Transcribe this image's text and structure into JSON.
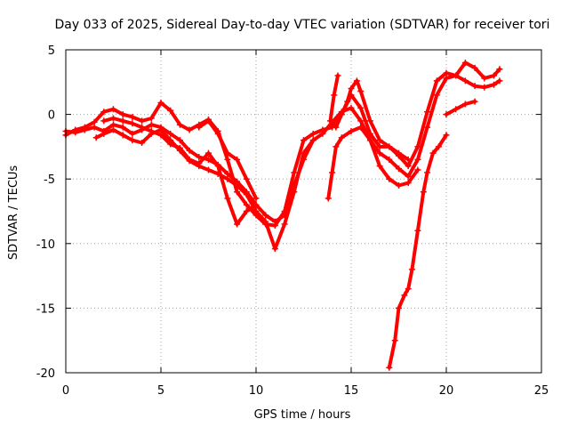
{
  "chart_data": {
    "type": "scatter",
    "title": "Day 033 of 2025, Sidereal Day-to-day VTEC variation (SDTVAR) for receiver tori",
    "xlabel": "GPS time / hours",
    "ylabel": "SDTVAR / TECUs",
    "xlim": [
      0,
      25
    ],
    "ylim": [
      -20,
      5
    ],
    "xticks": [
      "0",
      "5",
      "10",
      "15",
      "20",
      "25"
    ],
    "yticks": [
      "5",
      "0",
      "-5",
      "-10",
      "-15",
      "-20"
    ],
    "grid": true,
    "marker": "+",
    "color": "#ff0000",
    "series": [
      {
        "points": [
          [
            0,
            -1.6
          ],
          [
            0.5,
            -1.2
          ],
          [
            1,
            -1.0
          ],
          [
            1.5,
            -0.6
          ],
          [
            2,
            0.2
          ],
          [
            2.5,
            0.4
          ],
          [
            3,
            0.0
          ],
          [
            3.5,
            -0.2
          ],
          [
            4,
            -0.5
          ],
          [
            4.5,
            -0.3
          ],
          [
            5,
            0.9
          ],
          [
            5.5,
            0.3
          ],
          [
            6,
            -0.8
          ],
          [
            6.5,
            -1.2
          ],
          [
            7,
            -0.8
          ],
          [
            7.5,
            -0.4
          ],
          [
            8,
            -1.3
          ],
          [
            8.5,
            -3.5
          ],
          [
            9,
            -6.0
          ],
          [
            9.5,
            -7.0
          ],
          [
            10,
            -7.8
          ],
          [
            10.5,
            -8.5
          ],
          [
            11,
            -8.6
          ],
          [
            11.5,
            -7.5
          ],
          [
            12,
            -4.5
          ],
          [
            12.5,
            -2.0
          ],
          [
            13,
            -1.5
          ],
          [
            13.5,
            -1.2
          ],
          [
            14,
            -1.0
          ],
          [
            14.5,
            0.0
          ],
          [
            15,
            1.5
          ],
          [
            15.5,
            0.5
          ],
          [
            16,
            -1.5
          ],
          [
            16.5,
            -2.5
          ],
          [
            17,
            -2.5
          ],
          [
            17.5,
            -3.2
          ],
          [
            18,
            -4.0
          ],
          [
            18.5,
            -2.5
          ],
          [
            19,
            0.2
          ],
          [
            19.5,
            2.6
          ],
          [
            20,
            3.2
          ],
          [
            20.5,
            3.0
          ],
          [
            21,
            2.6
          ],
          [
            21.5,
            2.2
          ],
          [
            22,
            2.1
          ],
          [
            22.5,
            2.3
          ],
          [
            22.8,
            2.6
          ]
        ]
      },
      {
        "points": [
          [
            0,
            -1.3
          ],
          [
            0.5,
            -1.4
          ],
          [
            1,
            -1.2
          ],
          [
            1.5,
            -1.0
          ],
          [
            2,
            -1.3
          ],
          [
            2.5,
            -0.8
          ],
          [
            3,
            -1.0
          ],
          [
            3.5,
            -1.5
          ],
          [
            4,
            -1.2
          ],
          [
            4.5,
            -0.8
          ],
          [
            5,
            -1.0
          ],
          [
            5.5,
            -1.5
          ],
          [
            6,
            -2.0
          ],
          [
            6.5,
            -2.8
          ],
          [
            7,
            -3.3
          ],
          [
            7.5,
            -3.5
          ],
          [
            8,
            -3.9
          ],
          [
            8.5,
            -4.6
          ],
          [
            9,
            -5.2
          ],
          [
            9.5,
            -6.0
          ],
          [
            10,
            -7.0
          ],
          [
            10.5,
            -7.8
          ],
          [
            11,
            -8.3
          ],
          [
            11.5,
            -7.8
          ],
          [
            12,
            -5.5
          ],
          [
            12.5,
            -3.5
          ],
          [
            13,
            -2.0
          ],
          [
            13.5,
            -1.5
          ],
          [
            14,
            -0.6
          ],
          [
            14.5,
            0.2
          ],
          [
            15,
            0.5
          ],
          [
            15.5,
            -0.5
          ],
          [
            16,
            -2.0
          ],
          [
            16.5,
            -3.0
          ],
          [
            17,
            -3.5
          ],
          [
            17.5,
            -4.2
          ],
          [
            18,
            -4.8
          ],
          [
            18.5,
            -3.5
          ],
          [
            19,
            -1.0
          ],
          [
            19.5,
            1.5
          ],
          [
            20,
            2.8
          ],
          [
            20.5,
            3.0
          ],
          [
            21,
            4.0
          ],
          [
            21.5,
            3.6
          ],
          [
            22,
            2.8
          ],
          [
            22.5,
            3.0
          ],
          [
            22.8,
            3.5
          ]
        ]
      },
      {
        "points": [
          [
            1.6,
            -1.8
          ],
          [
            2,
            -1.5
          ],
          [
            2.5,
            -1.2
          ],
          [
            3,
            -1.6
          ],
          [
            3.5,
            -2.0
          ],
          [
            4,
            -2.2
          ],
          [
            4.5,
            -1.5
          ],
          [
            5,
            -1.2
          ],
          [
            5.5,
            -2.0
          ],
          [
            6,
            -2.8
          ],
          [
            6.5,
            -3.6
          ],
          [
            7,
            -4.0
          ],
          [
            7.5,
            -4.3
          ],
          [
            8,
            -4.6
          ],
          [
            8.5,
            -5.0
          ],
          [
            9,
            -5.5
          ],
          [
            9.5,
            -6.2
          ],
          [
            10,
            -7.5
          ],
          [
            10.5,
            -8.3
          ],
          [
            11,
            -10.4
          ],
          [
            11.5,
            -8.5
          ],
          [
            12,
            -6.0
          ],
          [
            12.5,
            -3.0
          ],
          [
            13,
            -2.0
          ]
        ]
      },
      {
        "points": [
          [
            2,
            -0.5
          ],
          [
            2.5,
            -0.3
          ],
          [
            3,
            -0.5
          ],
          [
            3.5,
            -0.7
          ],
          [
            4,
            -1.0
          ],
          [
            4.5,
            -1.3
          ],
          [
            5,
            -1.6
          ],
          [
            5.5,
            -2.3
          ],
          [
            6,
            -2.6
          ],
          [
            6.5,
            -3.5
          ],
          [
            7,
            -3.8
          ],
          [
            7.5,
            -3.0
          ],
          [
            8,
            -4.0
          ],
          [
            8.5,
            -6.5
          ],
          [
            9,
            -8.5
          ],
          [
            9.5,
            -7.5
          ],
          [
            10,
            -7.0
          ]
        ]
      },
      {
        "points": [
          [
            7,
            -1.0
          ],
          [
            7.5,
            -0.5
          ],
          [
            8,
            -1.5
          ],
          [
            8.5,
            -3.0
          ],
          [
            9,
            -3.5
          ],
          [
            9.5,
            -5.0
          ],
          [
            10,
            -6.5
          ]
        ]
      },
      {
        "points": [
          [
            13.8,
            -6.5
          ],
          [
            14,
            -4.5
          ],
          [
            14.2,
            -2.5
          ],
          [
            14.5,
            -1.8
          ],
          [
            15,
            -1.3
          ],
          [
            15.5,
            -1.0
          ],
          [
            16,
            -2.0
          ],
          [
            16.5,
            -4.0
          ],
          [
            17,
            -5.0
          ],
          [
            17.5,
            -5.5
          ],
          [
            18,
            -5.3
          ],
          [
            18.5,
            -4.3
          ]
        ]
      },
      {
        "points": [
          [
            14.2,
            -1.0
          ],
          [
            14.5,
            0.0
          ],
          [
            14.8,
            1.0
          ],
          [
            15,
            2.0
          ],
          [
            15.3,
            2.6
          ],
          [
            15.5,
            1.8
          ],
          [
            16,
            -0.5
          ],
          [
            16.5,
            -2.0
          ],
          [
            17,
            -2.5
          ],
          [
            17.5,
            -3.0
          ],
          [
            18,
            -3.5
          ]
        ]
      },
      {
        "points": [
          [
            13.9,
            -0.5
          ],
          [
            14.1,
            1.5
          ],
          [
            14.3,
            3.0
          ]
        ]
      },
      {
        "points": [
          [
            17,
            -19.6
          ],
          [
            17.3,
            -17.5
          ],
          [
            17.5,
            -15.0
          ],
          [
            17.8,
            -14.0
          ],
          [
            18,
            -13.5
          ],
          [
            18.2,
            -12.0
          ],
          [
            18.5,
            -9.0
          ],
          [
            18.8,
            -6.0
          ],
          [
            19,
            -4.5
          ],
          [
            19.3,
            -3.0
          ],
          [
            19.6,
            -2.5
          ],
          [
            20,
            -1.6
          ]
        ]
      },
      {
        "points": [
          [
            20,
            0.0
          ],
          [
            20.5,
            0.4
          ],
          [
            21,
            0.8
          ],
          [
            21.5,
            1.0
          ]
        ]
      }
    ]
  }
}
